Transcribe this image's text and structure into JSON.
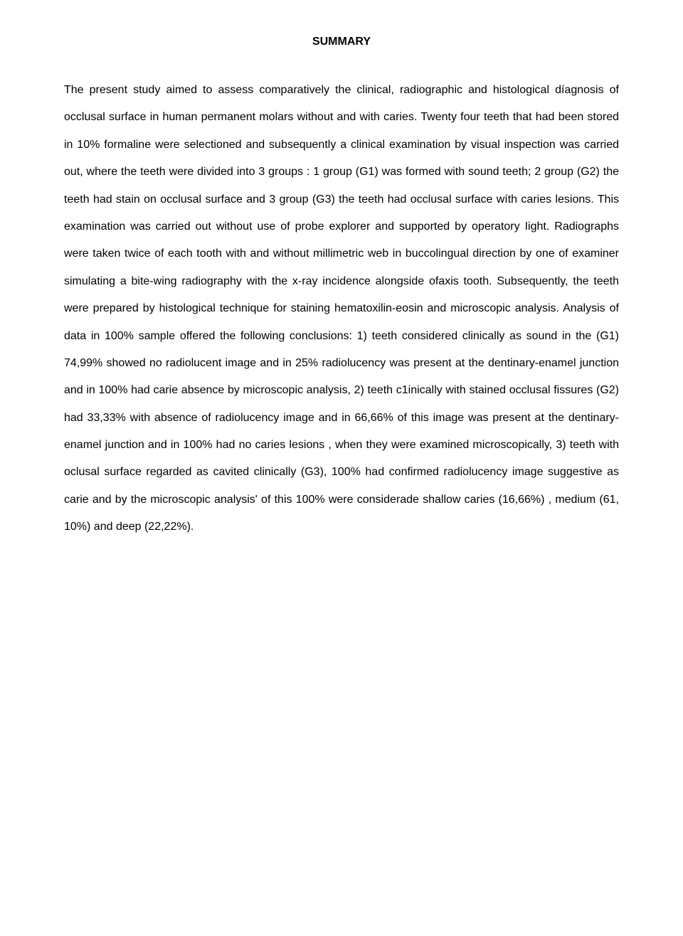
{
  "title": "SUMMARY",
  "paragraph": "The present study aimed to assess comparatively the clinical, radiographic and histological díagnosis of occlusal surface in human permanent molars without and with caries. Twenty four teeth that had been stored in 10% formaline were selectioned and subsequently a clinical examination by visual inspection was carried out, where the teeth were divided into 3 groups : 1 group (G1) was formed with sound teeth; 2 group (G2) the teeth had stain on occlusal surface and 3 group (G3) the teeth had occlusal surface wíth caries lesions. This examination was carried out without use of probe explorer and supported by operatory Iight. Radiographs were taken twice of each tooth with and without millimetric web in buccolingual direction by one of examiner simulating a bite-wing radiography with the x-ray incidence alongside ofaxis tooth. Subsequently, the teeth were prepared by histological technique for staining hematoxilin-eosin and microscopic analysis. Analysis of data in 100% sample offered the following conclusions: 1) teeth considered clinically as sound in the (G1) 74,99% showed no radiolucent image and in 25% radiolucency was present at the dentinary-enamel junction and in 100% had carie absence by microscopic analysis, 2) teeth c1inically with stained occlusal fissures (G2) had 33,33% with absence of radiolucency image and in 66,66% of this image was present at the dentinary-enamel junction and in 100% had no caries lesions , when they were examined microscopically, 3) teeth with oclusal surface regarded as cavited clinically (G3), 100% had confirmed radiolucency image suggestive as carie and by the microscopic analysis' of this 100% were considerade shallow caries (16,66%) , medium (61, 10%) and deep (22,22%)."
}
